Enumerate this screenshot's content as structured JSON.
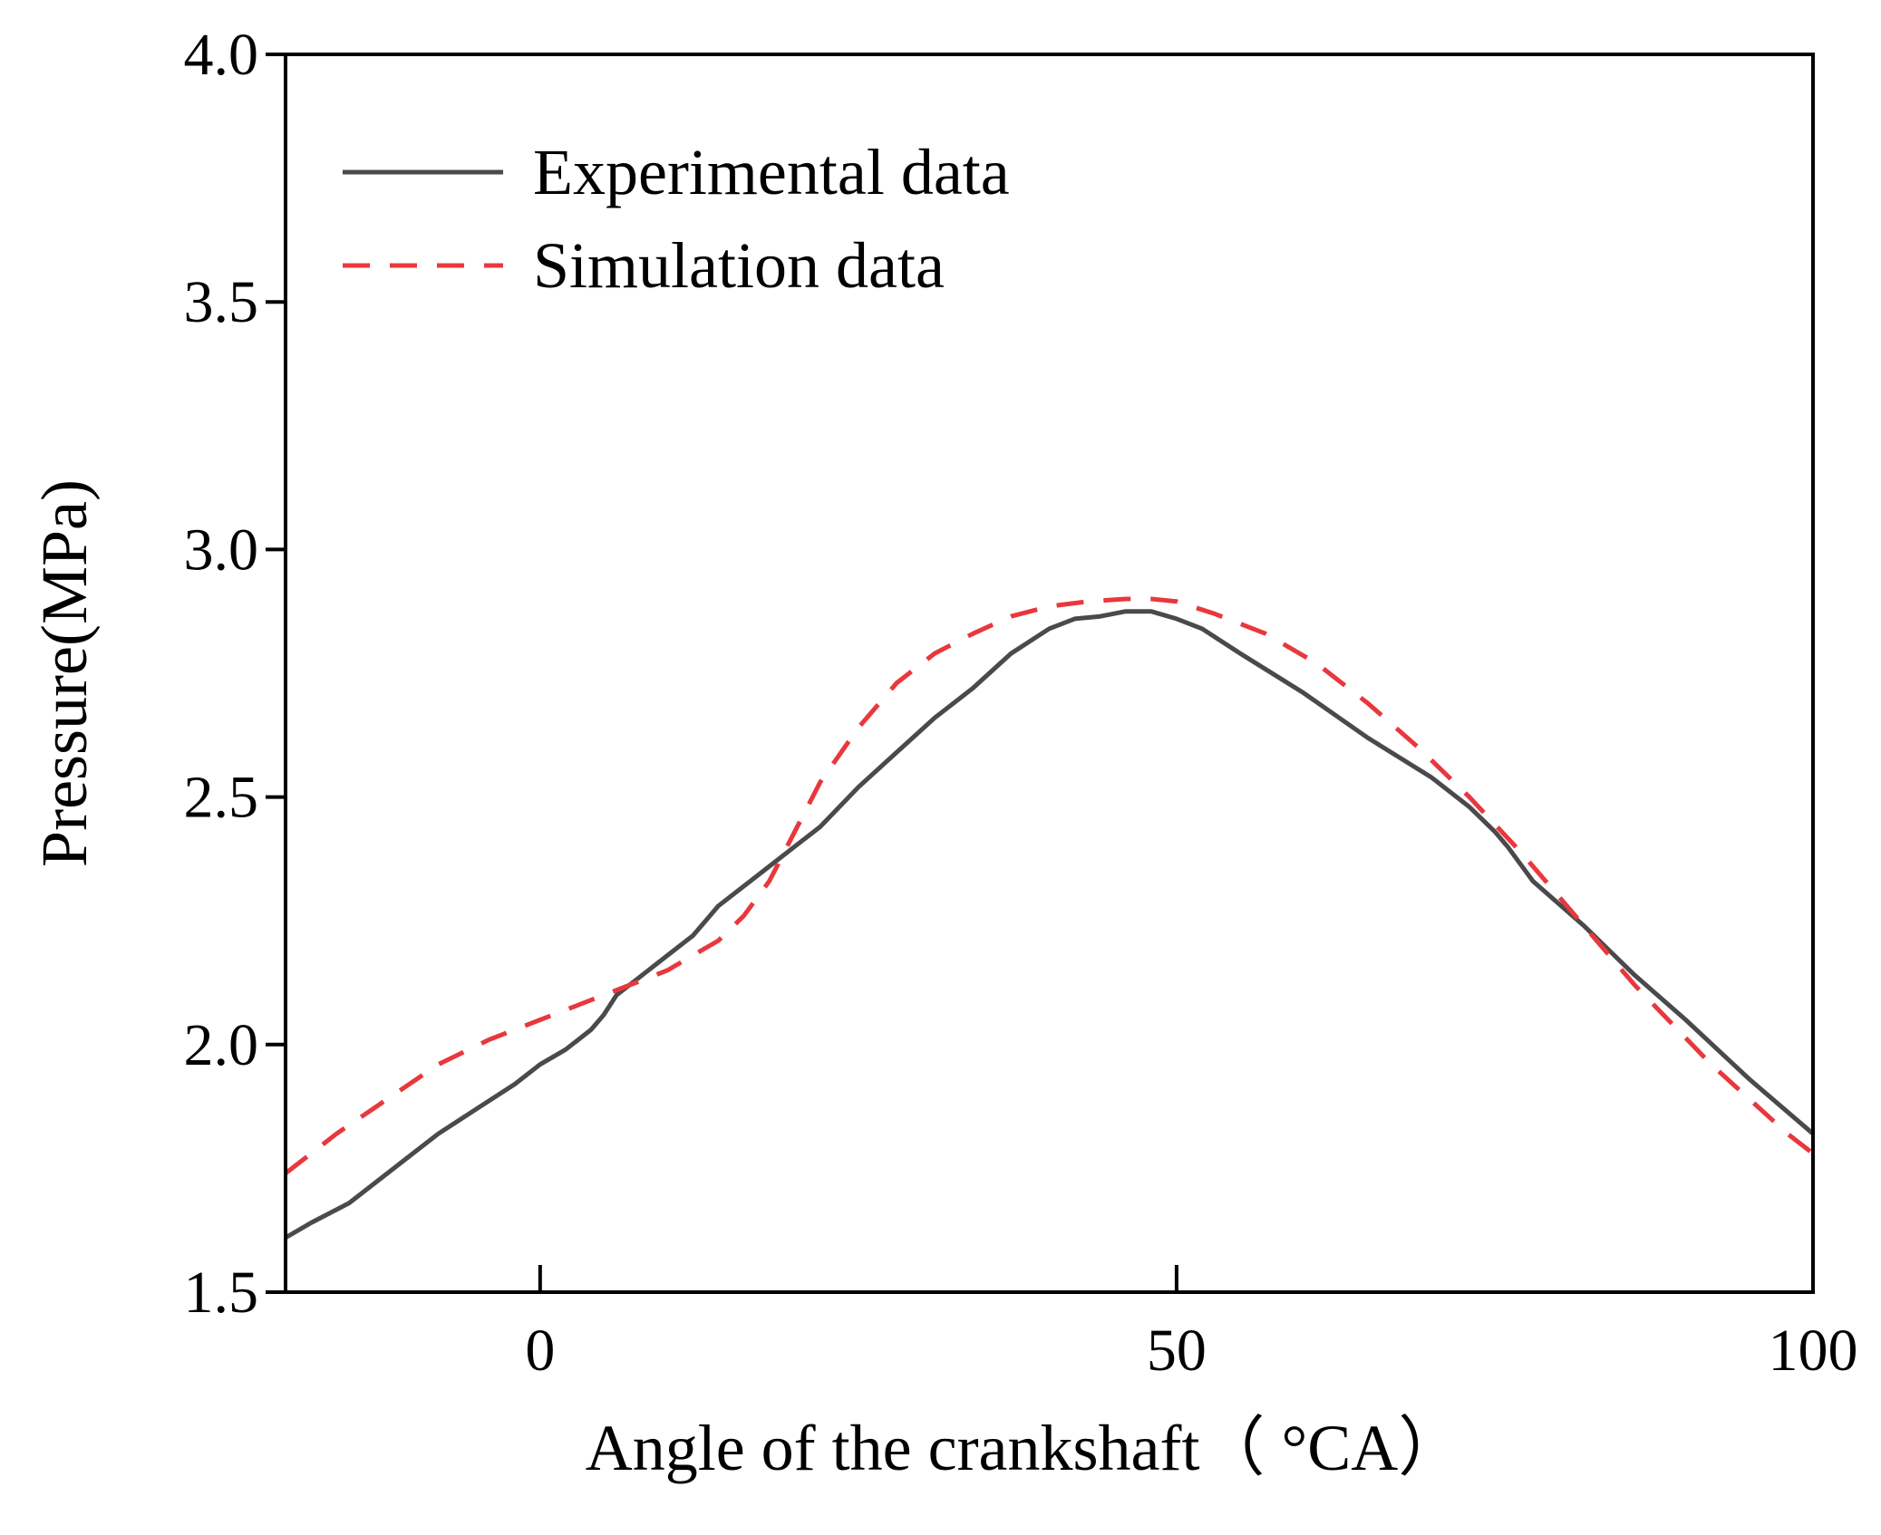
{
  "chart_data": {
    "type": "line",
    "title": "",
    "xlabel": "Angle of the crankshaft（ °CA）",
    "ylabel": "Pressure(MPa)",
    "xlim": [
      -20,
      100
    ],
    "ylim": [
      1.5,
      4.0
    ],
    "xticks": [
      0,
      50,
      100
    ],
    "xtick_labels": [
      "0",
      "50",
      "100"
    ],
    "yticks": [
      1.5,
      2.0,
      2.5,
      3.0,
      3.5,
      4.0
    ],
    "ytick_labels": [
      "1.5",
      "2.0",
      "2.5",
      "3.0",
      "3.5",
      "4.0"
    ],
    "grid": false,
    "legend_position": "top-left",
    "series": [
      {
        "name": "Experimental data",
        "color": "#4a4a4a",
        "style": "solid",
        "x": [
          -20,
          -18,
          -15,
          -12,
          -10,
          -8,
          -5,
          -2,
          0,
          2,
          4,
          5,
          6,
          8,
          10,
          12,
          13,
          14,
          16,
          18,
          20,
          22,
          25,
          28,
          31,
          34,
          37,
          40,
          42,
          44,
          46,
          48,
          50,
          52,
          55,
          60,
          65,
          70,
          73,
          75,
          76,
          78,
          82,
          86,
          90,
          95,
          100
        ],
        "y": [
          1.61,
          1.64,
          1.68,
          1.74,
          1.78,
          1.82,
          1.87,
          1.92,
          1.96,
          1.99,
          2.03,
          2.06,
          2.1,
          2.14,
          2.18,
          2.22,
          2.25,
          2.28,
          2.32,
          2.36,
          2.4,
          2.44,
          2.52,
          2.59,
          2.66,
          2.72,
          2.79,
          2.84,
          2.86,
          2.865,
          2.875,
          2.875,
          2.86,
          2.84,
          2.79,
          2.71,
          2.62,
          2.54,
          2.48,
          2.43,
          2.4,
          2.33,
          2.24,
          2.14,
          2.05,
          1.93,
          1.82
        ]
      },
      {
        "name": "Simulation data",
        "color": "#e8383d",
        "style": "dashed",
        "x": [
          -20,
          -16,
          -12,
          -8,
          -4,
          0,
          3,
          6,
          8,
          10,
          12,
          14,
          16,
          18,
          20,
          22,
          25,
          28,
          31,
          34,
          37,
          40,
          43,
          46,
          48,
          50,
          53,
          57,
          61,
          65,
          69,
          73,
          77,
          80,
          83,
          86,
          89,
          92,
          95,
          98,
          100
        ],
        "y": [
          1.74,
          1.82,
          1.89,
          1.96,
          2.01,
          2.05,
          2.08,
          2.11,
          2.13,
          2.15,
          2.18,
          2.21,
          2.26,
          2.33,
          2.43,
          2.53,
          2.64,
          2.73,
          2.79,
          2.83,
          2.865,
          2.885,
          2.895,
          2.9,
          2.9,
          2.895,
          2.87,
          2.83,
          2.77,
          2.69,
          2.6,
          2.5,
          2.39,
          2.3,
          2.21,
          2.12,
          2.04,
          1.96,
          1.89,
          1.82,
          1.78
        ]
      }
    ]
  }
}
